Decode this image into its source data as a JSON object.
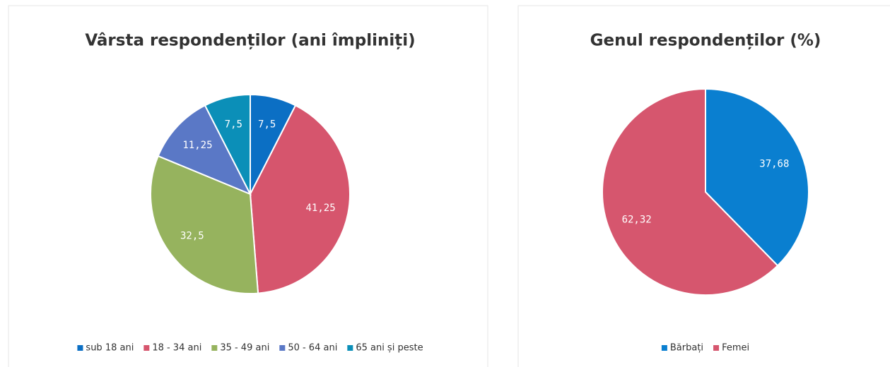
{
  "chart_data": [
    {
      "type": "pie",
      "title": "Vârsta respondenților (ani împliniți)",
      "categories": [
        "sub 18 ani",
        "18 - 34 ani",
        "35 - 49 ani",
        "50 - 64 ani",
        "65 ani și peste"
      ],
      "values": [
        7.5,
        41.25,
        32.5,
        11.25,
        7.5
      ],
      "value_labels": [
        "7,5",
        "41,25",
        "32,5",
        "11,25",
        "7,5"
      ],
      "colors": [
        "#0b6fc4",
        "#d6556d",
        "#96b35e",
        "#5a78c6",
        "#0b8fb8"
      ],
      "legend": "bottom"
    },
    {
      "type": "pie",
      "title": "Genul respondenților (%)",
      "categories": [
        "Bărbați",
        "Femei"
      ],
      "values": [
        37.68,
        62.32
      ],
      "value_labels": [
        "37,68",
        "62,32"
      ],
      "colors": [
        "#0a7fd0",
        "#d6566e"
      ],
      "legend": "bottom"
    }
  ]
}
